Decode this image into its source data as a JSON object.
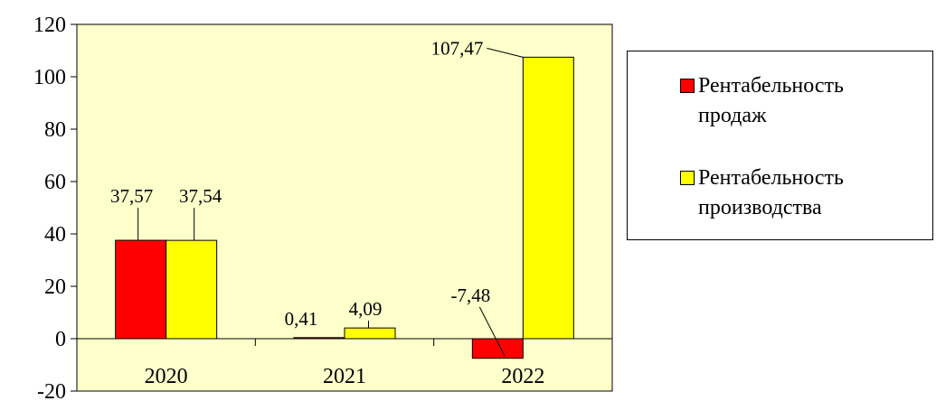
{
  "chart_data": {
    "type": "bar",
    "categories": [
      "2020",
      "2021",
      "2022"
    ],
    "series": [
      {
        "name": "Рентабельность продаж",
        "color": "#FF0000",
        "values": [
          37.57,
          0.41,
          -7.48
        ],
        "labels": [
          "37,57",
          "0,41",
          "-7,48"
        ]
      },
      {
        "name": "Рентабельность производства",
        "color": "#FFFF00",
        "values": [
          37.54,
          4.09,
          107.47
        ],
        "labels": [
          "37,54",
          "4,09",
          "107,47"
        ]
      }
    ],
    "yticks": [
      "120",
      "100",
      "80",
      "60",
      "40",
      "20",
      "0",
      "-20"
    ],
    "ylim": [
      -20,
      120
    ],
    "plot_background": "#FFFFCC",
    "legend_position": "right",
    "grid": false
  },
  "legend": {
    "sales_line1": "Рентабельность",
    "sales_line2": "продаж",
    "production_line1": "Рентабельность",
    "production_line2": "производства"
  }
}
